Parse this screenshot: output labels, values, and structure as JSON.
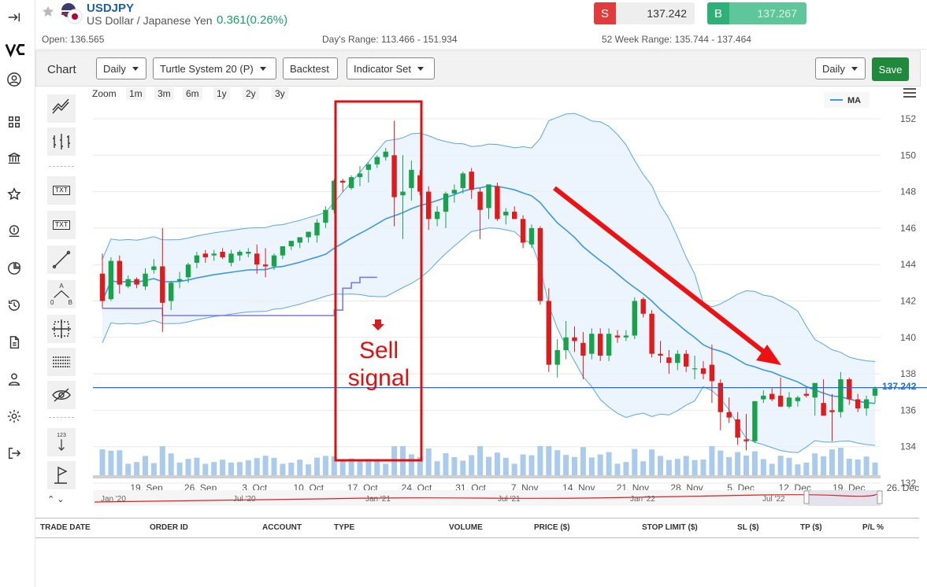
{
  "header": {
    "symbol": "USDJPY",
    "name": "US Dollar / Japanese Yen",
    "change": "0.361(0.26%)",
    "sell_label": "S",
    "sell_price": "137.242",
    "buy_label": "B",
    "buy_price": "137.267",
    "open": "Open: 136.565",
    "days_range": "Day's Range: 113.466 - 151.934",
    "week52_range": "52 Week Range: 135.744 - 137.464"
  },
  "toolbar": {
    "title": "Chart",
    "interval": "Daily",
    "strategy": "Turtle System 20 (P)",
    "backtest": "Backtest",
    "indicator_set": "Indicator Set",
    "interval_right": "Daily",
    "save": "Save"
  },
  "rail_icons": [
    "collapse-icon",
    "logo-icon",
    "user-icon",
    "grid-icon",
    "bank-icon",
    "star-icon",
    "money-icon",
    "pie-icon",
    "history-icon",
    "document-icon",
    "person-icon",
    "settings-icon",
    "logout-icon"
  ],
  "tools": {
    "txt1": "TXT",
    "txt2": "TXT",
    "fib_a": "A",
    "fib_0": "0",
    "fib_b": "B",
    "num": "123"
  },
  "zoom": {
    "label": "Zoom",
    "options": [
      "1m",
      "3m",
      "6m",
      "1y",
      "2y",
      "3y"
    ]
  },
  "chart_data": {
    "type": "candlestick",
    "legend": [
      "MA"
    ],
    "y_ticks": [
      152,
      150,
      148,
      146,
      144,
      142,
      140,
      138,
      136,
      134,
      132
    ],
    "ylim": [
      132,
      153
    ],
    "x_labels": [
      "19. Sep",
      "26. Sep",
      "3. Oct",
      "10. Oct",
      "17. Oct",
      "24. Oct",
      "31. Oct",
      "7. Nov",
      "14. Nov",
      "21. Nov",
      "28. Nov",
      "5. Dec",
      "12. Dec",
      "19. Dec",
      "26. Dec"
    ],
    "navigator_labels": [
      "Jan '20",
      "Jul '20",
      "Jan '21",
      "Jul '21",
      "Jan '22",
      "Jul '22"
    ],
    "last_price": "137.242",
    "annotations": {
      "sell_signal": "Sell\nsignal"
    },
    "candles": [
      [
        143.5,
        144.6,
        141.6,
        142.0
      ],
      [
        142.1,
        144.4,
        142.0,
        144.2
      ],
      [
        144.2,
        144.5,
        142.4,
        142.9
      ],
      [
        142.8,
        143.4,
        142.7,
        143.2
      ],
      [
        143.2,
        143.3,
        142.7,
        142.9
      ],
      [
        142.8,
        143.8,
        142.6,
        143.5
      ],
      [
        143.7,
        144.3,
        143.5,
        143.9
      ],
      [
        143.9,
        146.0,
        140.3,
        141.9
      ],
      [
        142.0,
        143.1,
        141.5,
        143.0
      ],
      [
        143.1,
        143.6,
        142.7,
        143.2
      ],
      [
        143.3,
        144.1,
        143.0,
        144.0
      ],
      [
        144.1,
        144.7,
        143.8,
        144.5
      ],
      [
        144.6,
        144.8,
        144.1,
        144.4
      ],
      [
        144.5,
        144.8,
        144.2,
        144.6
      ],
      [
        144.7,
        144.9,
        144.3,
        144.4
      ],
      [
        144.1,
        144.8,
        143.9,
        144.6
      ],
      [
        144.5,
        144.8,
        144.2,
        144.7
      ],
      [
        144.6,
        144.9,
        144.4,
        144.7
      ],
      [
        144.6,
        145.1,
        143.5,
        144.0
      ],
      [
        144.0,
        144.9,
        143.3,
        143.9
      ],
      [
        143.9,
        144.6,
        143.7,
        144.5
      ],
      [
        144.5,
        145.0,
        144.3,
        145.0
      ],
      [
        145.0,
        145.3,
        144.8,
        145.3
      ],
      [
        145.2,
        145.5,
        144.9,
        145.5
      ],
      [
        145.5,
        145.8,
        145.2,
        145.8
      ],
      [
        145.6,
        146.5,
        145.2,
        146.3
      ],
      [
        146.3,
        147.2,
        146.0,
        147.0
      ],
      [
        147.0,
        148.7,
        146.8,
        148.6
      ],
      [
        148.6,
        148.7,
        148.0,
        148.5
      ],
      [
        148.2,
        148.9,
        148.1,
        148.8
      ],
      [
        148.8,
        149.4,
        148.3,
        149.0
      ],
      [
        149.2,
        149.6,
        148.5,
        149.5
      ],
      [
        149.5,
        150.0,
        149.3,
        149.9
      ],
      [
        149.9,
        150.4,
        149.7,
        150.2
      ],
      [
        150.0,
        151.9,
        146.1,
        147.7
      ],
      [
        147.8,
        150.0,
        145.4,
        148.0
      ],
      [
        148.2,
        149.7,
        147.5,
        149.2
      ],
      [
        148.9,
        149.2,
        147.8,
        148.0
      ],
      [
        148.0,
        148.3,
        145.9,
        146.5
      ],
      [
        146.5,
        147.2,
        146.1,
        146.9
      ],
      [
        146.9,
        148.0,
        146.0,
        147.9
      ],
      [
        147.9,
        148.4,
        147.4,
        148.1
      ],
      [
        148.2,
        149.1,
        147.9,
        149.0
      ],
      [
        149.1,
        149.3,
        147.6,
        148.1
      ],
      [
        148.0,
        148.2,
        145.4,
        147.0
      ],
      [
        147.1,
        148.3,
        146.5,
        148.4
      ],
      [
        148.3,
        148.5,
        146.4,
        146.5
      ],
      [
        146.7,
        147.1,
        146.2,
        146.9
      ],
      [
        146.9,
        147.2,
        146.5,
        146.5
      ],
      [
        146.5,
        146.7,
        144.9,
        145.2
      ],
      [
        145.1,
        146.2,
        144.9,
        146.0
      ],
      [
        146.0,
        146.1,
        141.8,
        142.0
      ],
      [
        142.0,
        142.7,
        138.1,
        138.5
      ],
      [
        138.5,
        139.9,
        137.8,
        139.3
      ],
      [
        139.3,
        140.9,
        138.8,
        140.0
      ],
      [
        140.0,
        140.6,
        139.2,
        139.8
      ],
      [
        139.7,
        140.3,
        137.7,
        139.0
      ],
      [
        139.1,
        140.5,
        138.8,
        140.2
      ],
      [
        140.2,
        140.5,
        138.7,
        139.0
      ],
      [
        139.0,
        140.5,
        138.7,
        140.2
      ],
      [
        140.1,
        140.4,
        139.7,
        140.0
      ],
      [
        140.0,
        140.4,
        139.8,
        140.1
      ],
      [
        140.1,
        142.2,
        139.9,
        142.0
      ],
      [
        142.1,
        142.2,
        141.1,
        141.3
      ],
      [
        141.3,
        141.5,
        138.9,
        139.1
      ],
      [
        139.1,
        139.8,
        138.6,
        139.0
      ],
      [
        138.9,
        139.3,
        138.0,
        138.6
      ],
      [
        138.6,
        139.3,
        138.2,
        139.1
      ],
      [
        139.1,
        139.3,
        138.1,
        138.4
      ],
      [
        138.3,
        139.0,
        137.7,
        138.3
      ],
      [
        138.3,
        138.7,
        137.7,
        138.0
      ],
      [
        138.5,
        139.6,
        136.4,
        137.6
      ],
      [
        137.5,
        137.7,
        134.9,
        135.9
      ],
      [
        135.9,
        136.7,
        135.3,
        135.6
      ],
      [
        135.5,
        135.9,
        134.1,
        134.5
      ],
      [
        134.4,
        135.8,
        133.8,
        134.3
      ],
      [
        134.3,
        136.5,
        134.2,
        136.5
      ],
      [
        136.6,
        137.1,
        136.4,
        136.8
      ],
      [
        136.9,
        137.2,
        136.5,
        136.6
      ],
      [
        136.8,
        137.8,
        136.2,
        136.2
      ],
      [
        136.2,
        137.0,
        136.1,
        136.7
      ],
      [
        136.5,
        136.8,
        136.2,
        136.7
      ],
      [
        136.9,
        137.2,
        136.7,
        136.8
      ],
      [
        136.7,
        137.3,
        135.7,
        137.5
      ],
      [
        136.4,
        137.7,
        135.8,
        135.7
      ],
      [
        136.0,
        136.9,
        134.3,
        135.9
      ],
      [
        135.9,
        138.1,
        135.6,
        137.7
      ],
      [
        137.7,
        137.8,
        136.3,
        136.6
      ],
      [
        136.6,
        136.9,
        135.9,
        136.1
      ],
      [
        136.1,
        136.8,
        135.7,
        136.6
      ],
      [
        136.8,
        137.3,
        136.4,
        137.2
      ]
    ]
  }
}
